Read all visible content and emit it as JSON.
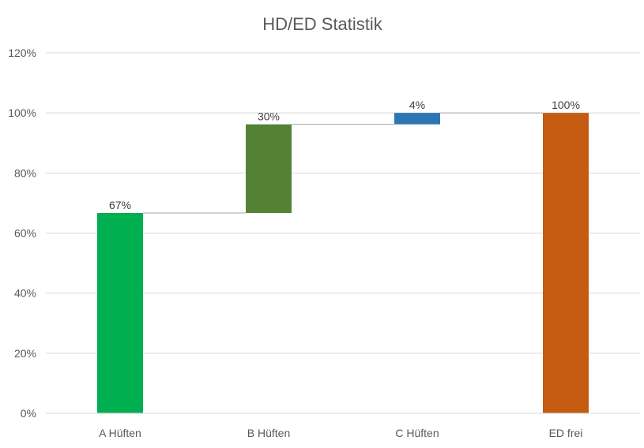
{
  "chart_data": {
    "type": "waterfall",
    "title": "HD/ED Statistik",
    "xlabel": "",
    "ylabel": "",
    "ylim": [
      0,
      1.2
    ],
    "y_ticks": [
      0,
      0.2,
      0.4,
      0.6,
      0.8,
      1.0,
      1.2
    ],
    "y_tick_labels": [
      "0%",
      "20%",
      "40%",
      "60%",
      "80%",
      "100%",
      "120%"
    ],
    "grid": true,
    "legend": "none",
    "categories": [
      "A Hüften",
      "B Hüften",
      "C Hüften",
      "ED frei"
    ],
    "bars": [
      {
        "category": "A Hüften",
        "start": 0,
        "end": 0.667,
        "label": "67%",
        "kind": "increase",
        "color": "#00B050"
      },
      {
        "category": "B Hüften",
        "start": 0.667,
        "end": 0.962,
        "label": "30%",
        "kind": "increase",
        "color": "#548235"
      },
      {
        "category": "C Hüften",
        "start": 0.962,
        "end": 1.0,
        "label": "4%",
        "kind": "increase",
        "color": "#2E75B6"
      },
      {
        "category": "ED frei",
        "start": 0,
        "end": 1.0,
        "label": "100%",
        "kind": "total",
        "color": "#C55A11"
      }
    ],
    "connector_color": "#A6A6A6",
    "gridline_color": "#D9D9D9"
  }
}
